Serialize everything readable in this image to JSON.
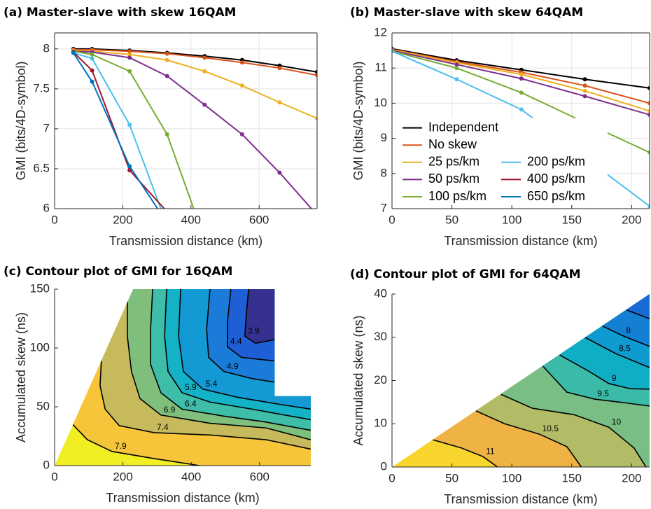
{
  "chart_data": [
    {
      "type": "line",
      "title": "(a) Master-slave with skew 16QAM",
      "xlabel": "Transmission distance (km)",
      "ylabel": "GMI (bits/4D-symbol)",
      "x": [
        55,
        110,
        220,
        330,
        440,
        550,
        660,
        770
      ],
      "xlim": [
        0,
        770
      ],
      "ylim": [
        6,
        8.2
      ],
      "xticks": [
        0,
        200,
        400,
        600
      ],
      "yticks": [
        6,
        6.5,
        7,
        7.5,
        8
      ],
      "grid": true,
      "series": [
        {
          "color": "#000000",
          "values": [
            8.0,
            8.0,
            7.98,
            7.95,
            7.91,
            7.86,
            7.79,
            7.71
          ]
        },
        {
          "color": "#d95319",
          "values": [
            7.99,
            7.99,
            7.97,
            7.94,
            7.89,
            7.83,
            7.76,
            7.67
          ]
        },
        {
          "color": "#edb120",
          "values": [
            7.98,
            7.97,
            7.93,
            7.86,
            7.72,
            7.54,
            7.33,
            7.13
          ]
        },
        {
          "color": "#7e2f8e",
          "values": [
            7.97,
            7.96,
            7.89,
            7.66,
            7.3,
            6.93,
            6.45,
            5.92
          ]
        },
        {
          "color": "#77ac30",
          "values": [
            7.97,
            7.93,
            7.72,
            6.93,
            5.62,
            null,
            null,
            null
          ]
        },
        {
          "color": "#4dbeee",
          "values": [
            7.95,
            7.88,
            7.05,
            5.79,
            null,
            null,
            null,
            null
          ]
        },
        {
          "color": "#a2142f",
          "values": [
            7.96,
            7.73,
            6.48,
            5.96,
            null,
            null,
            null,
            null
          ]
        },
        {
          "color": "#0072bd",
          "values": [
            7.95,
            7.59,
            6.53,
            5.82,
            null,
            null,
            null,
            null
          ]
        }
      ]
    },
    {
      "type": "line",
      "title": "(b) Master-slave with skew 64QAM",
      "xlabel": "Transmission distance (km)",
      "ylabel": "GMI (bits/4D-symbol)",
      "x": [
        0,
        54,
        108,
        161,
        215
      ],
      "xlim": [
        0,
        215
      ],
      "ylim": [
        7,
        12
      ],
      "xticks": [
        0,
        50,
        100,
        150,
        200
      ],
      "yticks": [
        7,
        8,
        9,
        10,
        11,
        12
      ],
      "grid": true,
      "legend": "lower left",
      "series": [
        {
          "name": "Independent",
          "color": "#000000",
          "values": [
            11.55,
            11.22,
            10.95,
            10.68,
            10.43
          ]
        },
        {
          "name": "No skew",
          "color": "#d95319",
          "values": [
            11.53,
            11.18,
            10.88,
            10.5,
            10.0
          ]
        },
        {
          "name": "25 ps/km",
          "color": "#edb120",
          "values": [
            11.52,
            11.15,
            10.82,
            10.35,
            9.78
          ]
        },
        {
          "name": "50 ps/km",
          "color": "#7e2f8e",
          "values": [
            11.5,
            11.1,
            10.7,
            10.2,
            9.67
          ]
        },
        {
          "name": "100 ps/km",
          "color": "#77ac30",
          "values": [
            11.48,
            11.0,
            10.3,
            9.45,
            8.6
          ]
        },
        {
          "name": "200 ps/km",
          "color": "#4dbeee",
          "values": [
            11.48,
            10.68,
            9.82,
            8.45,
            7.07
          ]
        },
        {
          "name": "400 ps/km",
          "color": "#a2142f",
          "values": [
            null,
            null,
            null,
            null,
            null
          ]
        },
        {
          "name": "650 ps/km",
          "color": "#0072bd",
          "values": [
            null,
            null,
            null,
            null,
            null
          ]
        }
      ]
    },
    {
      "type": "contour",
      "title": "(c) Contour plot of GMI for 16QAM",
      "xlabel": "Transmission distance (km)",
      "ylabel": "Accumulated skew (ns)",
      "xlim": [
        0,
        750
      ],
      "ylim": [
        0,
        150
      ],
      "xticks": [
        0,
        200,
        400,
        600
      ],
      "yticks": [
        0,
        50,
        100,
        150
      ],
      "grid": false,
      "domain": {
        "x": [
          0,
          230,
          644,
          644,
          750,
          750
        ],
        "y": [
          0,
          150,
          150,
          59,
          59,
          0
        ]
      },
      "band_colors": [
        "#36318f",
        "#1f5fd6",
        "#1a7cd8",
        "#1399d3",
        "#14b2c6",
        "#3ebda8",
        "#7fbf7b",
        "#c7ba5c",
        "#f7c53a",
        "#f2ee24"
      ],
      "contours": [
        {
          "level": 3.9,
          "x": [
            568,
            561,
            557,
            588,
            643
          ],
          "y": [
            150,
            128,
            110,
            104,
            107
          ]
        },
        {
          "level": 4.4,
          "x": [
            516,
            506,
            506,
            547,
            643
          ],
          "y": [
            150,
            122,
            101,
            92,
            89
          ]
        },
        {
          "level": 4.9,
          "x": [
            455,
            445,
            451,
            496,
            578,
            643
          ],
          "y": [
            150,
            116,
            92,
            80,
            74,
            71
          ]
        },
        {
          "level": 5.4,
          "x": [
            369,
            363,
            377,
            434,
            537,
            660,
            750
          ],
          "y": [
            150,
            110,
            80,
            65,
            58,
            52,
            48
          ]
        },
        {
          "level": 5.9,
          "x": [
            328,
            322,
            332,
            373,
            455,
            578,
            750
          ],
          "y": [
            150,
            110,
            80,
            62,
            54,
            48,
            39
          ]
        },
        {
          "level": 6.4,
          "x": [
            287,
            281,
            281,
            311,
            373,
            496,
            619,
            750
          ],
          "y": [
            150,
            116,
            86,
            62,
            48,
            42,
            37,
            30
          ]
        },
        {
          "level": 6.9,
          "x": [
            213,
            213,
            225,
            250,
            311,
            455,
            619,
            750
          ],
          "y": [
            140,
            110,
            80,
            57,
            43,
            36,
            32,
            22
          ]
        },
        {
          "level": 7.4,
          "x": [
            137,
            133,
            148,
            189,
            291,
            455,
            619,
            750
          ],
          "y": [
            89,
            68,
            48,
            34,
            28,
            26,
            22,
            14
          ]
        },
        {
          "level": 7.9,
          "x": [
            53,
            96,
            168,
            291,
            424
          ],
          "y": [
            35,
            22,
            12,
            6,
            0
          ]
        }
      ]
    },
    {
      "type": "contour",
      "title": "(d) Contour plot of GMI for 64QAM",
      "xlabel": "Transmission distance (km)",
      "ylabel": "Accumulated skew (ns)",
      "xlim": [
        0,
        215
      ],
      "ylim": [
        0,
        40
      ],
      "xticks": [
        0,
        50,
        100,
        150,
        200
      ],
      "yticks": [
        0,
        10,
        20,
        30,
        40
      ],
      "grid": false,
      "domain": {
        "x": [
          0,
          215,
          215
        ],
        "y": [
          0,
          40,
          0
        ]
      },
      "band_colors": [
        "#1a6ad6",
        "#1480d4",
        "#0d9bd0",
        "#10aec4",
        "#3cbaa8",
        "#78be85",
        "#b2bc66",
        "#eeb344",
        "#f8d52c"
      ],
      "contours": [
        {
          "level": 7.5,
          "x": [
            196,
            215
          ],
          "y": [
            36.3,
            34.3
          ]
        },
        {
          "level": 8,
          "x": [
            175,
            193,
            215
          ],
          "y": [
            32.7,
            30.3,
            27.9
          ]
        },
        {
          "level": 8.5,
          "x": [
            161,
            187,
            215
          ],
          "y": [
            30,
            26.2,
            23
          ]
        },
        {
          "level": 9,
          "x": [
            140,
            164,
            181,
            199,
            215
          ],
          "y": [
            25.9,
            22.2,
            19.3,
            18.1,
            18
          ]
        },
        {
          "level": 9.5,
          "x": [
            126,
            146,
            169,
            193,
            215
          ],
          "y": [
            23.3,
            17.3,
            15.7,
            14.9,
            14.1
          ]
        },
        {
          "level": 10,
          "x": [
            91,
            117,
            152,
            181,
            202,
            212
          ],
          "y": [
            16.8,
            13.6,
            12.1,
            9.2,
            4.4,
            0
          ]
        },
        {
          "level": 10.5,
          "x": [
            70,
            94,
            123,
            146,
            158
          ],
          "y": [
            13,
            10,
            7.6,
            4.7,
            0
          ]
        },
        {
          "level": 11,
          "x": [
            34,
            58,
            76,
            88
          ],
          "y": [
            6.3,
            4.4,
            2.4,
            0
          ]
        }
      ]
    }
  ]
}
